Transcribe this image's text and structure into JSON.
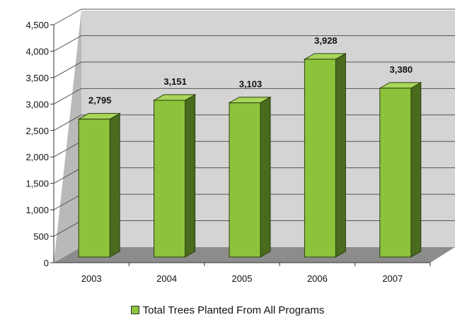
{
  "chart_data": {
    "type": "bar",
    "categories": [
      "2003",
      "2004",
      "2005",
      "2006",
      "2007"
    ],
    "series": [
      {
        "name": "Total Trees Planted From All Programs",
        "values": [
          2795,
          3151,
          3103,
          3928,
          3380
        ]
      }
    ],
    "data_labels": [
      "2,795",
      "3,151",
      "3,103",
      "3,928",
      "3,380"
    ],
    "y_ticks": [
      "0",
      "500",
      "1,000",
      "1,500",
      "2,000",
      "2,500",
      "3,000",
      "3,500",
      "4,000",
      "4,500"
    ],
    "ylim": [
      0,
      4500
    ],
    "grid": true,
    "legend_position": "bottom",
    "three_d": true,
    "colors": {
      "bar_front": "#8dc33b",
      "bar_side": "#4a6a1e",
      "bar_top": "#a9d65a",
      "bar_outline": "#2c3f12",
      "wall": "#d4d4d4",
      "floor": "#8c8c8c",
      "gridline": "#555555"
    }
  }
}
